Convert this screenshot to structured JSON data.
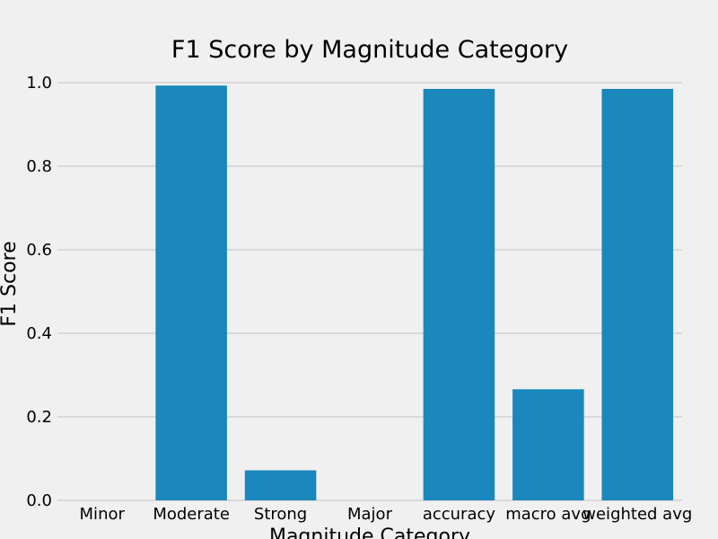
{
  "chart_data": {
    "type": "bar",
    "title": "F1 Score by Magnitude Category",
    "xlabel": "Magnitude Category",
    "ylabel": "F1 Score",
    "categories": [
      "Minor",
      "Moderate",
      "Strong",
      "Major",
      "accuracy",
      "macro avg",
      "weighted avg"
    ],
    "values": [
      0.0,
      0.993,
      0.072,
      0.0,
      0.985,
      0.266,
      0.985
    ],
    "ylim": [
      0,
      1.0
    ],
    "yticks": [
      "0.0",
      "0.2",
      "0.4",
      "0.6",
      "0.8",
      "1.0"
    ],
    "grid": true,
    "colors": {
      "bar": "#1a87bd",
      "background": "#f0f0f0",
      "grid": "#cbcbcb"
    }
  }
}
